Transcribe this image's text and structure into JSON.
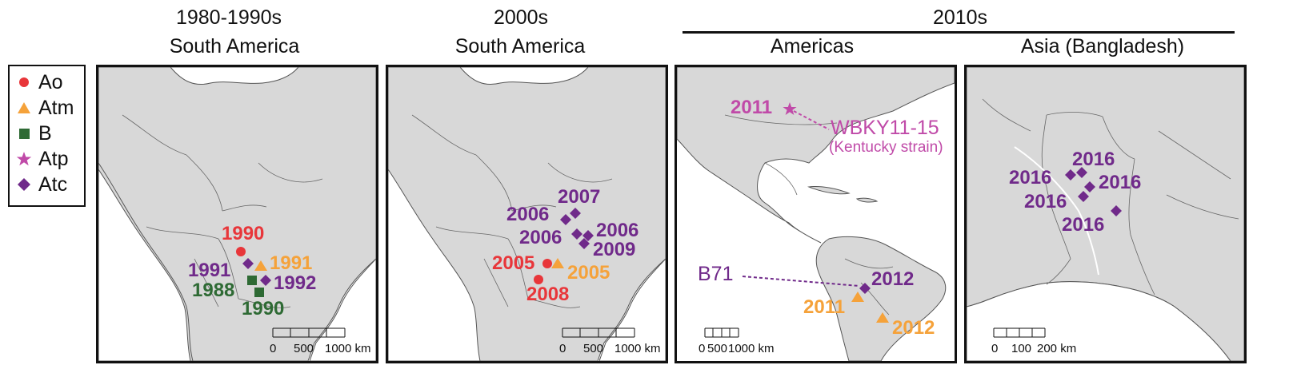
{
  "headers": {
    "p1_line1": "1980-1990s",
    "p1_line2": "South America",
    "p2_line1": "2000s",
    "p2_line2": "South America",
    "p34_top": "2010s",
    "p3_sub": "Americas",
    "p4_sub": "Asia (Bangladesh)"
  },
  "legend": [
    {
      "label": "Ao",
      "shape": "circle",
      "color": "#e8363a"
    },
    {
      "label": "Atm",
      "shape": "triangle",
      "color": "#f5a23a"
    },
    {
      "label": "B",
      "shape": "square",
      "color": "#2e6a34"
    },
    {
      "label": "Atp",
      "shape": "star",
      "color": "#c04aa8"
    },
    {
      "label": "Atc",
      "shape": "diamond",
      "color": "#702a8a"
    }
  ],
  "colors": {
    "land": "#d8d8d8",
    "coast": "#555555",
    "Ao": "#e8363a",
    "Atm": "#f5a23a",
    "B": "#2e6a34",
    "Atp": "#c04aa8",
    "Atc": "#702a8a"
  },
  "panel1": {
    "labels": {
      "ao_1990": "1990",
      "atc_1991": "1991",
      "atm_1991": "1991",
      "b_1988": "1988",
      "atc_1992": "1992",
      "b_1990": "1990"
    },
    "scale": {
      "t0": "0",
      "t1": "500",
      "t2": "1000 km"
    }
  },
  "panel2": {
    "labels": {
      "atc_2007": "2007",
      "atc_2006a": "2006",
      "atc_2006b": "2006",
      "atc_2006c": "2006",
      "atc_2009": "2009",
      "ao_2005": "2005",
      "atm_2005": "2005",
      "ao_2008": "2008"
    },
    "scale": {
      "t0": "0",
      "t1": "500",
      "t2": "1000 km"
    }
  },
  "panel3": {
    "labels": {
      "atp_2011": "2011",
      "wbky": "WBKY11-15",
      "kentucky": "(Kentucky strain)",
      "b71": "B71",
      "atc_2012": "2012",
      "atm_2011": "2011",
      "atm_2012": "2012"
    },
    "scale": {
      "t0": "0",
      "t1": "500",
      "t2": "1000 km"
    }
  },
  "panel4": {
    "labels": {
      "d1": "2016",
      "d2": "2016",
      "d3": "2016",
      "d4": "2016",
      "d5": "2016"
    },
    "scale": {
      "t0": "0",
      "t1": "100",
      "t2": "200 km"
    }
  }
}
